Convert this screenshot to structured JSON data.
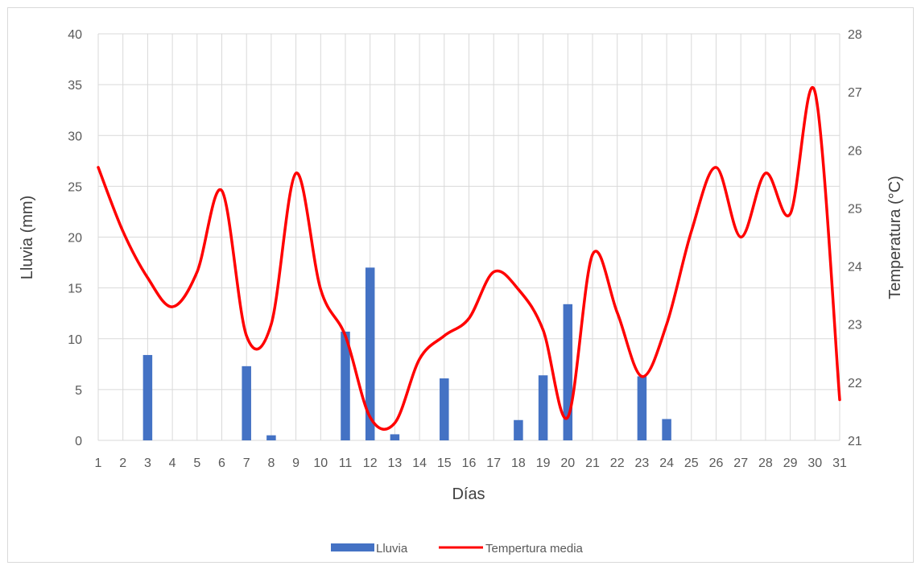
{
  "chart_data": {
    "type": "bar+line",
    "title": "",
    "xlabel": "Días",
    "ylabel_left": "Lluvia (mm)",
    "ylabel_right": "Temperatura (°C)",
    "ylim_left": [
      0,
      40
    ],
    "ylim_right": [
      21,
      28
    ],
    "yticks_left": [
      0,
      5,
      10,
      15,
      20,
      25,
      30,
      35,
      40
    ],
    "yticks_right": [
      21,
      22,
      23,
      24,
      25,
      26,
      27,
      28
    ],
    "categories": [
      "1",
      "2",
      "3",
      "4",
      "5",
      "6",
      "7",
      "8",
      "9",
      "10",
      "11",
      "12",
      "13",
      "14",
      "15",
      "16",
      "17",
      "18",
      "19",
      "20",
      "21",
      "22",
      "23",
      "24",
      "25",
      "26",
      "27",
      "28",
      "29",
      "30",
      "31"
    ],
    "grid": true,
    "legend_position": "bottom",
    "series": [
      {
        "name": "Lluvia",
        "type": "bar",
        "axis": "left",
        "color": "#4472C4",
        "values": [
          0,
          0,
          8.4,
          0,
          0,
          0,
          7.3,
          0.5,
          0,
          0,
          10.7,
          17.0,
          0.6,
          0,
          6.1,
          0,
          0,
          2.0,
          6.4,
          13.4,
          0,
          0,
          6.3,
          2.1,
          0,
          0,
          0,
          0,
          0,
          0,
          0
        ]
      },
      {
        "name": "Tempertura media",
        "type": "line",
        "axis": "right",
        "color": "#FF0000",
        "values": [
          25.7,
          24.6,
          23.8,
          23.3,
          23.9,
          25.3,
          22.8,
          23.0,
          25.6,
          23.6,
          22.8,
          21.4,
          21.3,
          22.4,
          22.8,
          23.1,
          23.9,
          23.6,
          22.9,
          21.4,
          24.2,
          23.2,
          22.1,
          23.0,
          24.6,
          25.7,
          24.5,
          25.6,
          24.9,
          27.0,
          21.7
        ]
      }
    ]
  }
}
